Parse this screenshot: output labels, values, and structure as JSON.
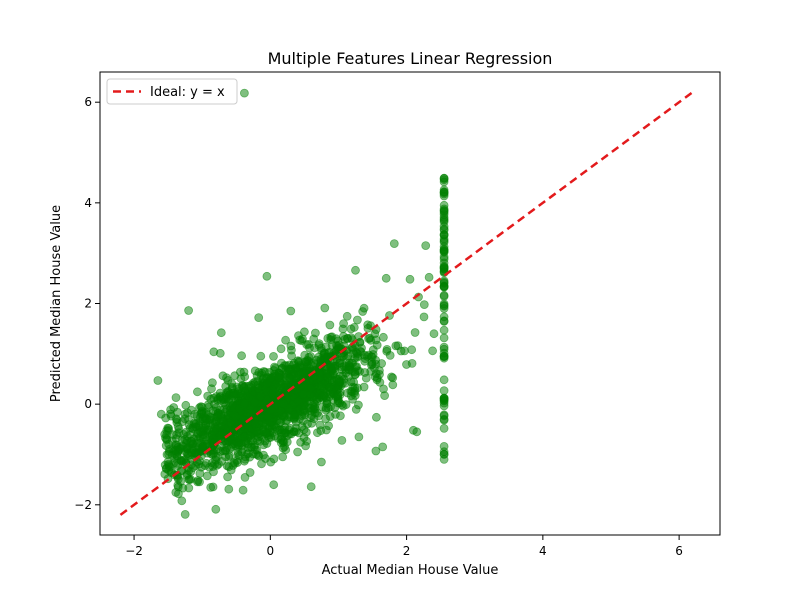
{
  "chart_data": {
    "type": "scatter",
    "title": "Multiple Features Linear Regression",
    "xlabel": "Actual Median House Value",
    "ylabel": "Predicted Median House Value",
    "xlim": [
      -2.5,
      6.6
    ],
    "ylim": [
      -2.6,
      6.6
    ],
    "xticks": [
      -2,
      0,
      2,
      4,
      6
    ],
    "yticks": [
      -2,
      0,
      2,
      4,
      6
    ],
    "xtick_labels": [
      "−2",
      "0",
      "2",
      "4",
      "6"
    ],
    "ytick_labels": [
      "−2",
      "0",
      "2",
      "4",
      "6"
    ],
    "legend": {
      "placement": "top-left",
      "entries": [
        "Ideal: y = x"
      ]
    },
    "grid": false,
    "ideal_line": {
      "label": "Ideal: y = x",
      "color": "#e31a1c",
      "x": [
        -2.2,
        6.2
      ],
      "y": [
        -2.2,
        6.2
      ]
    },
    "scatter_color": "#008000",
    "cluster": {
      "x_range": [
        -1.55,
        2.55
      ],
      "center_x": 0.0,
      "center_y": 0.0,
      "slope": 0.62,
      "spread": 0.42,
      "count": 1800,
      "cap_x": 2.55,
      "cap_y_range": [
        -1.1,
        4.5
      ],
      "cap_count": 90
    },
    "outliers": [
      {
        "x": -0.38,
        "y": 6.18
      },
      {
        "x": -1.65,
        "y": 0.47
      },
      {
        "x": -1.2,
        "y": 1.86
      },
      {
        "x": -0.72,
        "y": 1.42
      },
      {
        "x": -0.83,
        "y": 1.04
      },
      {
        "x": -0.17,
        "y": 1.72
      },
      {
        "x": -0.05,
        "y": 2.54
      },
      {
        "x": 0.3,
        "y": 1.85
      },
      {
        "x": 0.8,
        "y": 1.91
      },
      {
        "x": 1.25,
        "y": 2.66
      },
      {
        "x": 1.82,
        "y": 3.19
      },
      {
        "x": 2.28,
        "y": 3.15
      },
      {
        "x": 2.33,
        "y": 2.52
      },
      {
        "x": 1.7,
        "y": 2.5
      },
      {
        "x": 2.05,
        "y": 2.48
      },
      {
        "x": -1.6,
        "y": -0.2
      },
      {
        "x": -1.55,
        "y": -0.6
      },
      {
        "x": -1.25,
        "y": -2.19
      },
      {
        "x": -0.8,
        "y": -2.09
      },
      {
        "x": -0.4,
        "y": -1.71
      },
      {
        "x": 0.05,
        "y": -1.6
      },
      {
        "x": 0.6,
        "y": -1.64
      },
      {
        "x": 0.75,
        "y": -1.15
      },
      {
        "x": 1.05,
        "y": -0.72
      },
      {
        "x": 1.55,
        "y": -0.93
      },
      {
        "x": 1.65,
        "y": -0.85
      },
      {
        "x": 2.1,
        "y": -0.52
      },
      {
        "x": 2.15,
        "y": -0.55
      },
      {
        "x": -1.3,
        "y": -1.92
      },
      {
        "x": -1.35,
        "y": -1.78
      },
      {
        "x": 0.4,
        "y": -0.95
      },
      {
        "x": 1.3,
        "y": -0.65
      }
    ]
  }
}
